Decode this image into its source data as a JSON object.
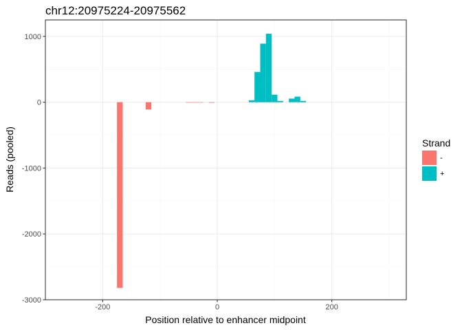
{
  "chart_data": {
    "type": "bar",
    "title": "chr12:20975224-20975562",
    "xlabel": "Position relative to enhancer midpoint",
    "ylabel": "Reads (pooled)",
    "xlim": [
      -300,
      330
    ],
    "ylim": [
      -3000,
      1250
    ],
    "x_ticks": [
      -200,
      0,
      200
    ],
    "y_ticks": [
      -3000,
      -2000,
      -1000,
      0,
      1000
    ],
    "x_minor": [
      -300,
      -100,
      100,
      300
    ],
    "y_minor": [
      -2500,
      -1500,
      -500,
      500
    ],
    "bin_width": 10,
    "grid": true,
    "legend": {
      "title": "Strand",
      "position": "right",
      "entries": [
        {
          "label": "-",
          "color": "#F8766D"
        },
        {
          "label": "+",
          "color": "#00BFC4"
        }
      ]
    },
    "series": [
      {
        "name": "-",
        "color": "#F8766D",
        "points": [
          {
            "x": -170,
            "y": -2820
          },
          {
            "x": -120,
            "y": -110
          },
          {
            "x": -50,
            "y": -5
          },
          {
            "x": -40,
            "y": -5
          },
          {
            "x": -30,
            "y": -5
          },
          {
            "x": -10,
            "y": -8
          }
        ]
      },
      {
        "name": "+",
        "color": "#00BFC4",
        "points": [
          {
            "x": 60,
            "y": 30
          },
          {
            "x": 70,
            "y": 460
          },
          {
            "x": 80,
            "y": 890
          },
          {
            "x": 90,
            "y": 1040
          },
          {
            "x": 100,
            "y": 115
          },
          {
            "x": 110,
            "y": 20
          },
          {
            "x": 130,
            "y": 55
          },
          {
            "x": 140,
            "y": 85
          },
          {
            "x": 150,
            "y": 20
          }
        ]
      }
    ]
  }
}
